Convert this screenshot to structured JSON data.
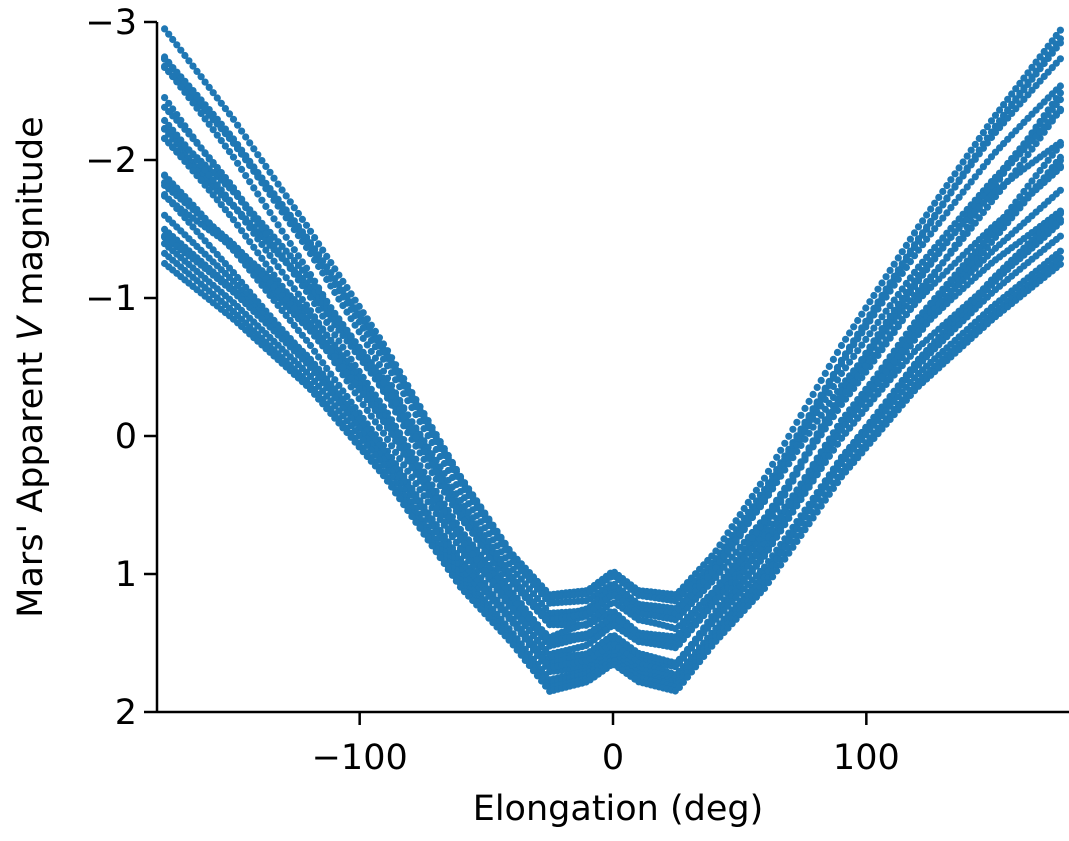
{
  "chart_data": {
    "type": "scatter",
    "title": "",
    "xlabel": "Elongation (deg)",
    "ylabel_prefix": "Mars' Apparent ",
    "ylabel_italic": "V",
    "ylabel_suffix": " magnitude",
    "xlim": [
      -180,
      180
    ],
    "ylim": [
      2,
      -3
    ],
    "y_inverted": true,
    "grid": false,
    "x_ticks": [
      {
        "value": -100,
        "label": "−100"
      },
      {
        "value": 0,
        "label": "0"
      },
      {
        "value": 100,
        "label": "100"
      }
    ],
    "y_ticks": [
      {
        "value": -3,
        "label": "−3"
      },
      {
        "value": -2,
        "label": "−2"
      },
      {
        "value": -1,
        "label": "−1"
      },
      {
        "value": 0,
        "label": "0"
      },
      {
        "value": 1,
        "label": "1"
      },
      {
        "value": 2,
        "label": "2"
      }
    ],
    "series": [
      {
        "color": "#1f77b4",
        "envelope_description_points": {
          "x": [
            -177,
            -150,
            -120,
            -90,
            -60,
            -40,
            -25,
            -10,
            0,
            10,
            25,
            40,
            60,
            90,
            120,
            150,
            177
          ],
          "y_bright_edge": [
            -2.95,
            -2.3,
            -1.5,
            -0.65,
            0.3,
            0.85,
            1.15,
            1.12,
            0.98,
            1.12,
            1.15,
            0.85,
            0.3,
            -0.65,
            -1.5,
            -2.3,
            -2.95
          ],
          "y_faint_edge": [
            -1.25,
            -0.85,
            -0.35,
            0.3,
            1.1,
            1.5,
            1.85,
            1.78,
            1.65,
            1.78,
            1.85,
            1.5,
            1.1,
            0.3,
            -0.35,
            -0.85,
            -1.25
          ]
        }
      }
    ]
  }
}
